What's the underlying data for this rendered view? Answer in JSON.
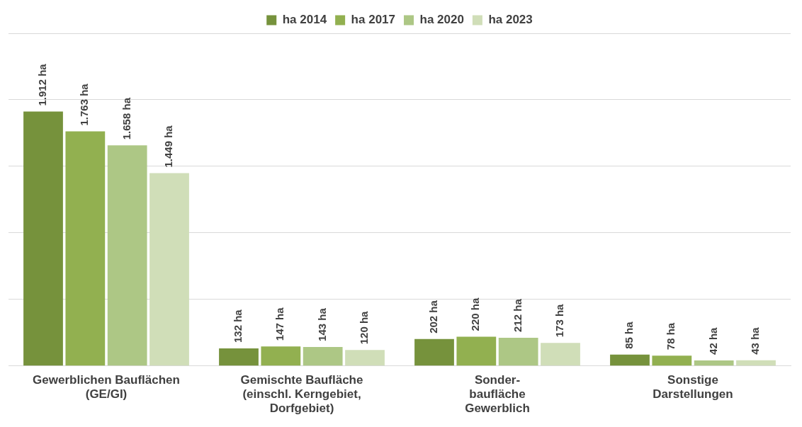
{
  "chart_data": {
    "type": "bar",
    "categories": [
      "Gewerblichen Bauflächen\n(GE/GI)",
      "Gemischte Baufläche\n(einschl. Kerngebiet,\nDorfgebiet)",
      "Sonder-\nbaufläche\nGewerblich",
      "Sonstige\nDarstellungen"
    ],
    "series": [
      {
        "name": "ha 2014",
        "color": "#76923c",
        "values": [
          1912,
          132,
          202,
          85
        ],
        "value_labels": [
          "1.912 ha",
          "132 ha",
          "202 ha",
          "85 ha"
        ]
      },
      {
        "name": "ha 2017",
        "color": "#92b050",
        "values": [
          1763,
          147,
          220,
          78
        ],
        "value_labels": [
          "1.763 ha",
          "147 ha",
          "220 ha",
          "78 ha"
        ]
      },
      {
        "name": "ha 2020",
        "color": "#adc785",
        "values": [
          1658,
          143,
          212,
          42
        ],
        "value_labels": [
          "1.658 ha",
          "143 ha",
          "212 ha",
          "42 ha"
        ]
      },
      {
        "name": "ha 2023",
        "color": "#d0deb8",
        "values": [
          1449,
          120,
          173,
          43
        ],
        "value_labels": [
          "1.449 ha",
          "120 ha",
          "173 ha",
          "43 ha"
        ]
      }
    ],
    "ylim": [
      0,
      2500
    ],
    "yticks": [
      {
        "value": 0,
        "label": null
      },
      {
        "value": 500,
        "label": null
      },
      {
        "value": 1000,
        "label": null
      },
      {
        "value": 1500,
        "label": null
      },
      {
        "value": 2000,
        "label": null
      },
      {
        "value": 2500,
        "label": null
      }
    ],
    "tick_labels": "x",
    "grid": "y",
    "legend": "top"
  }
}
